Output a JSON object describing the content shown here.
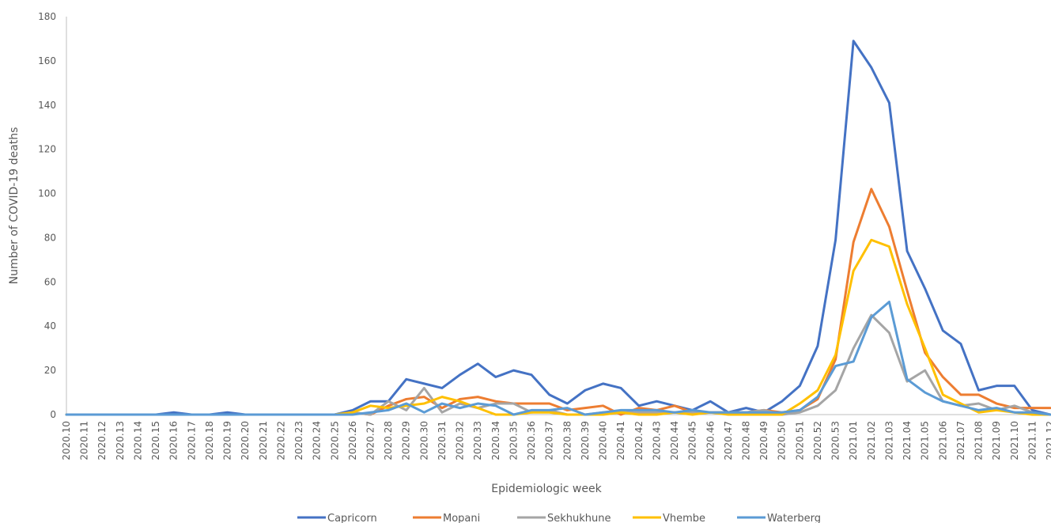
{
  "chart_data": {
    "type": "line",
    "title": "",
    "xlabel": "Epidemiologic week",
    "ylabel": "Number of COVID-19 deaths",
    "ylim": [
      0,
      180
    ],
    "yticks": [
      0,
      20,
      40,
      60,
      80,
      100,
      120,
      140,
      160,
      180
    ],
    "grid": false,
    "legend_position": "bottom",
    "categories": [
      "2020.10",
      "2020.11",
      "2020.12",
      "2020.13",
      "2020.14",
      "2020.15",
      "2020.16",
      "2020.17",
      "2020.18",
      "2020.19",
      "2020.20",
      "2020.21",
      "2020.22",
      "2020.23",
      "2020.24",
      "2020.25",
      "2020.26",
      "2020.27",
      "2020.28",
      "2020.29",
      "2020.30",
      "2020.31",
      "2020.32",
      "2020.33",
      "2020.34",
      "2020.35",
      "2020.36",
      "2020.37",
      "2020.38",
      "2020.39",
      "2020.40",
      "2020.41",
      "2020.42",
      "2020.43",
      "2020.44",
      "2020.45",
      "2020.46",
      "2020.47",
      "2020.48",
      "2020.49",
      "2020.50",
      "2020.51",
      "2020.52",
      "2020.53",
      "2021.01",
      "2021.02",
      "2021.03",
      "2021.04",
      "2021.05",
      "2021.06",
      "2021.07",
      "2021.08",
      "2021.09",
      "2021.10",
      "2021.11",
      "2021.12"
    ],
    "series": [
      {
        "name": "Capricorn",
        "color": "#4472C4",
        "values": [
          0,
          0,
          0,
          0,
          0,
          0,
          1,
          0,
          0,
          1,
          0,
          0,
          0,
          0,
          0,
          0,
          2,
          6,
          6,
          16,
          14,
          12,
          18,
          23,
          17,
          20,
          18,
          9,
          5,
          11,
          14,
          12,
          4,
          6,
          4,
          2,
          6,
          1,
          3,
          1,
          6,
          13,
          31,
          79,
          169,
          157,
          141,
          74,
          57,
          38,
          32,
          11,
          13,
          13,
          2,
          0
        ]
      },
      {
        "name": "Mopani",
        "color": "#ED7D31",
        "values": [
          0,
          0,
          0,
          0,
          0,
          0,
          0,
          0,
          0,
          0,
          0,
          0,
          0,
          0,
          0,
          0,
          1,
          0,
          4,
          7,
          8,
          3,
          7,
          8,
          6,
          5,
          5,
          5,
          2,
          3,
          4,
          0,
          3,
          2,
          4,
          1,
          1,
          1,
          1,
          2,
          1,
          2,
          7,
          25,
          78,
          102,
          85,
          56,
          28,
          17,
          9,
          9,
          5,
          3,
          3,
          3
        ]
      },
      {
        "name": "Sekhukhune",
        "color": "#A5A5A5",
        "values": [
          0,
          0,
          0,
          0,
          0,
          0,
          0,
          0,
          0,
          0,
          0,
          0,
          0,
          0,
          0,
          0,
          1,
          0,
          6,
          2,
          12,
          1,
          5,
          3,
          5,
          5,
          1,
          2,
          0,
          0,
          1,
          1,
          1,
          1,
          1,
          1,
          1,
          1,
          1,
          2,
          0,
          1,
          4,
          11,
          30,
          45,
          37,
          15,
          20,
          6,
          4,
          5,
          2,
          4,
          1,
          0
        ]
      },
      {
        "name": "Vhembe",
        "color": "#FFC000",
        "values": [
          0,
          0,
          0,
          0,
          0,
          0,
          0,
          0,
          0,
          0,
          0,
          0,
          0,
          0,
          0,
          0,
          1,
          4,
          3,
          4,
          5,
          8,
          6,
          3,
          0,
          0,
          1,
          1,
          0,
          0,
          0,
          1,
          0,
          0,
          1,
          0,
          1,
          0,
          0,
          0,
          0,
          5,
          11,
          27,
          65,
          79,
          76,
          50,
          30,
          9,
          5,
          1,
          2,
          1,
          0,
          0
        ]
      },
      {
        "name": "Waterberg",
        "color": "#5B9BD5",
        "values": [
          0,
          0,
          0,
          0,
          0,
          0,
          0,
          0,
          0,
          0,
          0,
          0,
          0,
          0,
          0,
          0,
          0,
          1,
          2,
          5,
          1,
          5,
          3,
          5,
          4,
          0,
          2,
          2,
          3,
          0,
          1,
          2,
          2,
          2,
          1,
          2,
          1,
          1,
          1,
          1,
          1,
          2,
          8,
          22,
          24,
          44,
          51,
          16,
          10,
          6,
          4,
          2,
          3,
          1,
          1,
          0
        ]
      }
    ]
  }
}
